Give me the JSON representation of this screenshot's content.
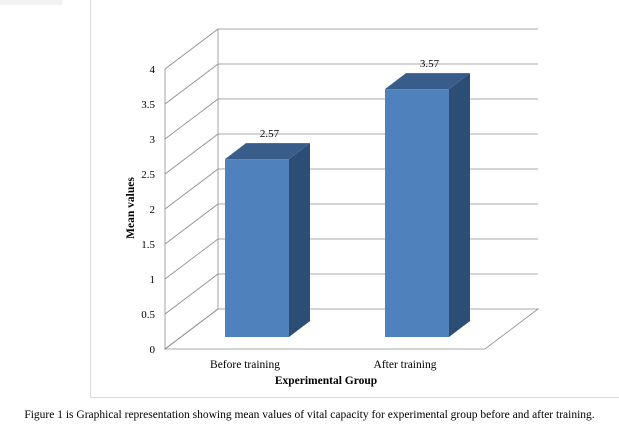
{
  "chart_data": {
    "type": "bar",
    "style": "3d-column",
    "categories": [
      "Before training",
      "After training"
    ],
    "values": [
      2.57,
      3.57
    ],
    "value_labels": [
      "2.57",
      "3.57"
    ],
    "xlabel": "Experimental Group",
    "ylabel": "Mean values",
    "ylim": [
      0,
      4
    ],
    "yticks": [
      "0",
      "0.5",
      "1",
      "1.5",
      "2",
      "2.5",
      "3",
      "3.5",
      "4"
    ],
    "grid": true,
    "legend": "none",
    "colors": {
      "bar_front": "#4f81bd",
      "bar_side": "#2c4d75",
      "bar_top": "#385d8a",
      "grid": "#8c8c8c"
    }
  },
  "caption": "Figure 1 is Graphical representation showing mean values of vital capacity for experimental group before and after training."
}
